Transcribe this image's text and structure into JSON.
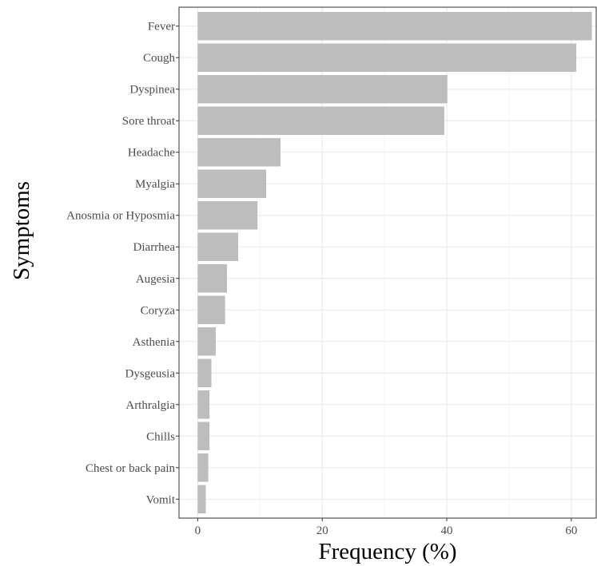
{
  "chart_data": {
    "type": "bar",
    "orientation": "horizontal",
    "xlabel": "Frequency (%)",
    "ylabel": "Symptoms",
    "xlim": [
      -3,
      64
    ],
    "x_ticks": [
      0,
      20,
      40,
      60
    ],
    "grid": true,
    "categories": [
      "Fever",
      "Cough",
      "Dyspinea",
      "Sore throat",
      "Headache",
      "Myalgia",
      "Anosmia or Hyposmia",
      "Diarrhea",
      "Augesia",
      "Coryza",
      "Asthenia",
      "Dysgeusia",
      "Arthralgia",
      "Chills",
      "Chest or back pain",
      "Vomit"
    ],
    "values": [
      63.3,
      60.8,
      40.1,
      39.6,
      13.3,
      11.0,
      9.6,
      6.5,
      4.7,
      4.4,
      2.9,
      2.2,
      1.9,
      1.9,
      1.7,
      1.3
    ],
    "colors": {
      "bar": "#bdbdbd",
      "grid_major": "#ebebeb",
      "grid_minor": "#f5f5f5",
      "panel_border": "#333333",
      "tick_text": "#4d4d4d"
    }
  }
}
